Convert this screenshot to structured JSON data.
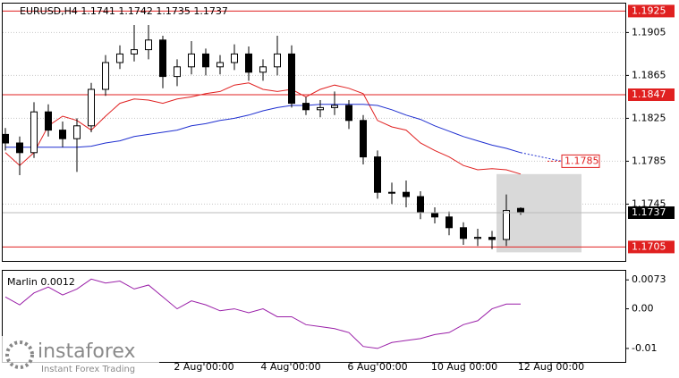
{
  "chart_data": [
    {
      "type": "candlestick",
      "title": "EURUSD,H4  1.1741 1.1742 1.1735 1.1737",
      "open": [
        1.181,
        1.1802,
        1.1793,
        1.1831,
        1.1814,
        1.1806,
        1.1818,
        1.1852,
        1.1877,
        1.1885,
        1.1889,
        1.1898,
        1.1864,
        1.1873,
        1.1885,
        1.1873,
        1.1877,
        1.1885,
        1.1868,
        1.1873,
        1.1885,
        1.1839,
        1.1833,
        1.1835,
        1.1837,
        1.1823,
        1.1789,
        1.1756,
        1.1756,
        1.1752,
        1.1737,
        1.1733,
        1.1723,
        1.1713,
        1.1714,
        1.1712,
        1.1741
      ],
      "high": [
        1.1816,
        1.1808,
        1.184,
        1.1838,
        1.1822,
        1.1825,
        1.1858,
        1.1884,
        1.1893,
        1.1912,
        1.1912,
        1.1902,
        1.188,
        1.1897,
        1.189,
        1.1884,
        1.1894,
        1.1892,
        1.188,
        1.1902,
        1.1893,
        1.1845,
        1.1842,
        1.185,
        1.1842,
        1.1828,
        1.1795,
        1.1765,
        1.1767,
        1.1757,
        1.1742,
        1.1738,
        1.1728,
        1.1722,
        1.172,
        1.1754,
        1.1742
      ],
      "low": [
        1.1795,
        1.1772,
        1.1788,
        1.1808,
        1.1798,
        1.1775,
        1.1812,
        1.1846,
        1.1871,
        1.1878,
        1.188,
        1.1853,
        1.1855,
        1.1866,
        1.1865,
        1.1866,
        1.187,
        1.186,
        1.186,
        1.1865,
        1.1835,
        1.1828,
        1.1826,
        1.1828,
        1.1815,
        1.1782,
        1.175,
        1.1745,
        1.1742,
        1.1731,
        1.1727,
        1.1716,
        1.1707,
        1.1706,
        1.1703,
        1.1706,
        1.1735
      ],
      "close": [
        1.1802,
        1.1793,
        1.1831,
        1.1814,
        1.1806,
        1.1818,
        1.1852,
        1.1877,
        1.1885,
        1.1889,
        1.1898,
        1.1864,
        1.1873,
        1.1885,
        1.1873,
        1.1877,
        1.1885,
        1.1868,
        1.1873,
        1.1885,
        1.1839,
        1.1833,
        1.1835,
        1.1837,
        1.1823,
        1.1789,
        1.1756,
        1.1756,
        1.1752,
        1.1737,
        1.1733,
        1.1723,
        1.1713,
        1.1714,
        1.1712,
        1.1739,
        1.1737
      ],
      "series": [
        {
          "color": "#e02020",
          "values": [
            1.1793,
            1.1781,
            1.1793,
            1.1818,
            1.1827,
            1.1823,
            1.1814,
            1.1827,
            1.1839,
            1.1843,
            1.1842,
            1.1839,
            1.1843,
            1.1845,
            1.1848,
            1.185,
            1.1856,
            1.1858,
            1.1852,
            1.185,
            1.1852,
            1.1845,
            1.1852,
            1.1856,
            1.1853,
            1.1848,
            1.1823,
            1.1817,
            1.1814,
            1.1802,
            1.1795,
            1.1789,
            1.1781,
            1.1777,
            1.1778,
            1.1777,
            1.1773
          ]
        },
        {
          "color": "#1f2fd0",
          "values": [
            1.1798,
            1.1798,
            1.1798,
            1.1798,
            1.1798,
            1.1798,
            1.1799,
            1.1802,
            1.1804,
            1.1808,
            1.181,
            1.1812,
            1.1814,
            1.1818,
            1.182,
            1.1823,
            1.1825,
            1.1828,
            1.1832,
            1.1835,
            1.1837,
            1.1837,
            1.1838,
            1.1838,
            1.1838,
            1.1838,
            1.1837,
            1.1833,
            1.1828,
            1.1824,
            1.1818,
            1.1813,
            1.1808,
            1.1804,
            1.18,
            1.1797,
            1.1793
          ]
        }
      ],
      "projection": 1.1785,
      "levels": [
        1.1925,
        1.1847,
        1.1705
      ],
      "level_color": "#e02020",
      "last_price": 1.1737,
      "zone": [
        1.1773,
        1.17
      ],
      "ylim": [
        1.1692,
        1.1932
      ],
      "yticks": [
        1.1905,
        1.1865,
        1.1825,
        1.1785,
        1.1745
      ],
      "xtick_labels": [
        "2 Aug 00:00",
        "4 Aug 00:00",
        "6 Aug 00:00",
        "10 Aug 00:00",
        "12 Aug 00:00"
      ],
      "grid": true
    },
    {
      "type": "line",
      "title": "Marlin 0.0012",
      "color": "#9a1fa8",
      "values": [
        0.003,
        0.001,
        0.004,
        0.0055,
        0.0035,
        0.005,
        0.0075,
        0.0065,
        0.007,
        0.005,
        0.006,
        0.003,
        0.0,
        0.002,
        0.001,
        -0.0005,
        0.0,
        -0.001,
        0.0,
        -0.002,
        -0.002,
        -0.004,
        -0.0045,
        -0.005,
        -0.006,
        -0.0095,
        -0.01,
        -0.0085,
        -0.008,
        -0.0075,
        -0.0065,
        -0.006,
        -0.004,
        -0.003,
        0.0,
        0.0012,
        0.0012
      ],
      "ylim": [
        -0.0134,
        0.0096
      ],
      "yticks": [
        0.0073,
        {
          "value": 0,
          "label": "0.00"
        },
        -0.01
      ]
    }
  ],
  "branding": {
    "name": "instaforex",
    "tagline": "Instant Forex Trading"
  }
}
